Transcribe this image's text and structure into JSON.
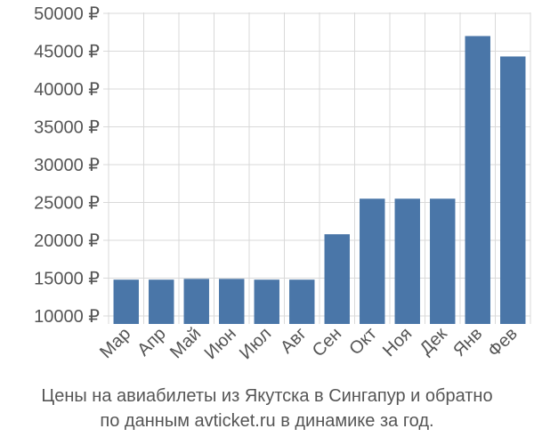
{
  "chart_data": {
    "type": "bar",
    "title": "",
    "xlabel": "",
    "ylabel": "",
    "currency_symbol": "₽",
    "categories": [
      "Мар",
      "Апр",
      "Май",
      "Июн",
      "Июл",
      "Авг",
      "Сен",
      "Окт",
      "Ноя",
      "Дек",
      "Янв",
      "Фев"
    ],
    "values": [
      14800,
      14800,
      14900,
      14900,
      14800,
      14800,
      20800,
      25500,
      25500,
      25500,
      47000,
      44300
    ],
    "ylim": [
      9000,
      50000
    ],
    "yticks": [
      10000,
      15000,
      20000,
      25000,
      30000,
      35000,
      40000,
      45000,
      50000
    ],
    "ytick_labels": [
      "10000 ₽",
      "15000 ₽",
      "20000 ₽",
      "25000 ₽",
      "30000 ₽",
      "35000 ₽",
      "40000 ₽",
      "45000 ₽",
      "50000 ₽"
    ],
    "grid": true,
    "bar_color": "#4a76a8",
    "grid_color": "#d9d9d9",
    "text_color": "#555555"
  },
  "caption": {
    "line1": "Цены на авиабилеты из Якутска в Сингапур и обратно",
    "line2": "по данным avticket.ru в динамике за год."
  }
}
